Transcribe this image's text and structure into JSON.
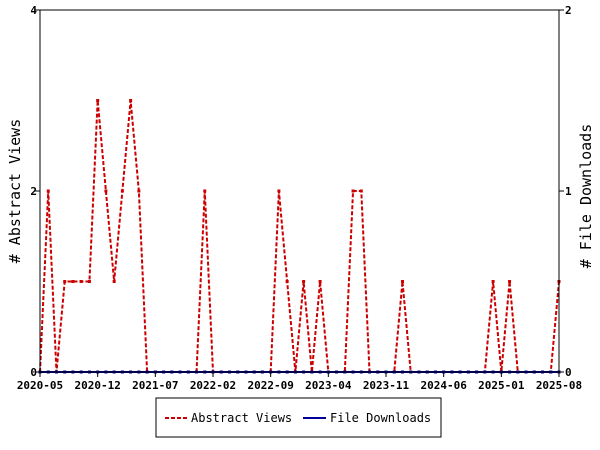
{
  "chart_data": {
    "type": "line",
    "title": "",
    "ylabel_left": "# Abstract Views",
    "ylabel_right": "# File Downloads",
    "ylim_left": [
      0,
      4
    ],
    "ylim_right": [
      0,
      2
    ],
    "yticks_left": [
      "0",
      "2",
      "4"
    ],
    "yticks_right": [
      "0",
      "1",
      "2"
    ],
    "xlim": [
      "2020-05",
      "2025-08"
    ],
    "xtick_labels": [
      "2020-05",
      "2020-12",
      "2021-07",
      "2022-02",
      "2022-09",
      "2023-04",
      "2023-11",
      "2024-06",
      "2025-01",
      "2025-08"
    ],
    "legend_position": "bottom-center",
    "grid": false,
    "series": [
      {
        "name": "Abstract Views",
        "axis": "left",
        "color": "#cc0000",
        "dash": "dashed",
        "points": [
          [
            "2020-05",
            0
          ],
          [
            "2020-06",
            2
          ],
          [
            "2020-07",
            0
          ],
          [
            "2020-08",
            1
          ],
          [
            "2020-09",
            1
          ],
          [
            "2020-10",
            1
          ],
          [
            "2020-11",
            1
          ],
          [
            "2020-12",
            3
          ],
          [
            "2021-01",
            2
          ],
          [
            "2021-02",
            1
          ],
          [
            "2021-03",
            2
          ],
          [
            "2021-04",
            3
          ],
          [
            "2021-05",
            2
          ],
          [
            "2021-06",
            0
          ],
          [
            "2021-07",
            0
          ],
          [
            "2021-08",
            0
          ],
          [
            "2021-09",
            0
          ],
          [
            "2021-10",
            0
          ],
          [
            "2021-11",
            0
          ],
          [
            "2021-12",
            0
          ],
          [
            "2022-01",
            2
          ],
          [
            "2022-02",
            0
          ],
          [
            "2022-03",
            0
          ],
          [
            "2022-04",
            0
          ],
          [
            "2022-05",
            0
          ],
          [
            "2022-06",
            0
          ],
          [
            "2022-07",
            0
          ],
          [
            "2022-08",
            0
          ],
          [
            "2022-09",
            0
          ],
          [
            "2022-10",
            2
          ],
          [
            "2022-11",
            1
          ],
          [
            "2022-12",
            0
          ],
          [
            "2023-01",
            1
          ],
          [
            "2023-02",
            0
          ],
          [
            "2023-03",
            1
          ],
          [
            "2023-04",
            0
          ],
          [
            "2023-05",
            0
          ],
          [
            "2023-06",
            0
          ],
          [
            "2023-07",
            2
          ],
          [
            "2023-08",
            2
          ],
          [
            "2023-09",
            0
          ],
          [
            "2023-10",
            0
          ],
          [
            "2023-11",
            0
          ],
          [
            "2023-12",
            0
          ],
          [
            "2024-01",
            1
          ],
          [
            "2024-02",
            0
          ],
          [
            "2024-03",
            0
          ],
          [
            "2024-04",
            0
          ],
          [
            "2024-05",
            0
          ],
          [
            "2024-06",
            0
          ],
          [
            "2024-07",
            0
          ],
          [
            "2024-08",
            0
          ],
          [
            "2024-09",
            0
          ],
          [
            "2024-10",
            0
          ],
          [
            "2024-11",
            0
          ],
          [
            "2024-12",
            1
          ],
          [
            "2025-01",
            0
          ],
          [
            "2025-02",
            1
          ],
          [
            "2025-03",
            0
          ],
          [
            "2025-04",
            0
          ],
          [
            "2025-05",
            0
          ],
          [
            "2025-06",
            0
          ],
          [
            "2025-07",
            0
          ],
          [
            "2025-08",
            1
          ]
        ]
      },
      {
        "name": "File Downloads",
        "axis": "right",
        "color": "#000099",
        "dash": "solid",
        "points": [
          [
            "2020-05",
            0
          ],
          [
            "2020-06",
            0
          ],
          [
            "2020-07",
            0
          ],
          [
            "2020-08",
            0
          ],
          [
            "2020-09",
            0
          ],
          [
            "2020-10",
            0
          ],
          [
            "2020-11",
            0
          ],
          [
            "2020-12",
            0
          ],
          [
            "2021-01",
            0
          ],
          [
            "2021-02",
            0
          ],
          [
            "2021-03",
            0
          ],
          [
            "2021-04",
            0
          ],
          [
            "2021-05",
            0
          ],
          [
            "2021-06",
            0
          ],
          [
            "2021-07",
            0
          ],
          [
            "2021-08",
            0
          ],
          [
            "2021-09",
            0
          ],
          [
            "2021-10",
            0
          ],
          [
            "2021-11",
            0
          ],
          [
            "2021-12",
            0
          ],
          [
            "2022-01",
            0
          ],
          [
            "2022-02",
            0
          ],
          [
            "2022-03",
            0
          ],
          [
            "2022-04",
            0
          ],
          [
            "2022-05",
            0
          ],
          [
            "2022-06",
            0
          ],
          [
            "2022-07",
            0
          ],
          [
            "2022-08",
            0
          ],
          [
            "2022-09",
            0
          ],
          [
            "2022-10",
            0
          ],
          [
            "2022-11",
            0
          ],
          [
            "2022-12",
            0
          ],
          [
            "2023-01",
            0
          ],
          [
            "2023-02",
            0
          ],
          [
            "2023-03",
            0
          ],
          [
            "2023-04",
            0
          ],
          [
            "2023-05",
            0
          ],
          [
            "2023-06",
            0
          ],
          [
            "2023-07",
            0
          ],
          [
            "2023-08",
            0
          ],
          [
            "2023-09",
            0
          ],
          [
            "2023-10",
            0
          ],
          [
            "2023-11",
            0
          ],
          [
            "2023-12",
            0
          ],
          [
            "2024-01",
            0
          ],
          [
            "2024-02",
            0
          ],
          [
            "2024-03",
            0
          ],
          [
            "2024-04",
            0
          ],
          [
            "2024-05",
            0
          ],
          [
            "2024-06",
            0
          ],
          [
            "2024-07",
            0
          ],
          [
            "2024-08",
            0
          ],
          [
            "2024-09",
            0
          ],
          [
            "2024-10",
            0
          ],
          [
            "2024-11",
            0
          ],
          [
            "2024-12",
            0
          ],
          [
            "2025-01",
            0
          ],
          [
            "2025-02",
            0
          ],
          [
            "2025-03",
            0
          ],
          [
            "2025-04",
            0
          ],
          [
            "2025-05",
            0
          ],
          [
            "2025-06",
            0
          ],
          [
            "2025-07",
            0
          ],
          [
            "2025-08",
            0
          ]
        ]
      }
    ]
  }
}
